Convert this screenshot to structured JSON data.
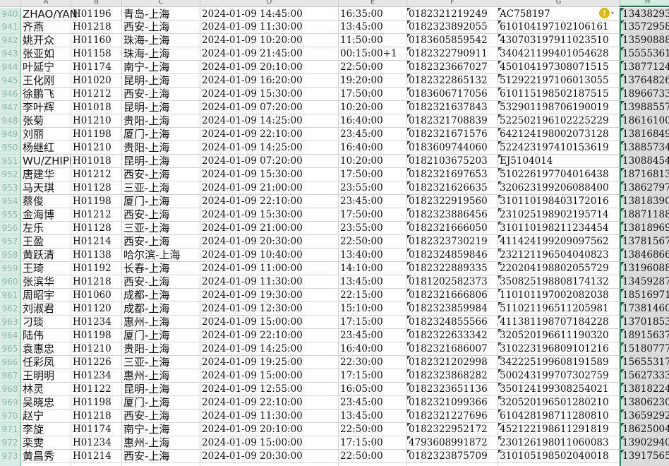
{
  "columns": [
    "A",
    "B",
    "C",
    "D",
    "E",
    "F",
    "G",
    "H"
  ],
  "selected_column": "H",
  "rows": [
    {
      "n": "940",
      "a": "ZHAO/YAN",
      "b": "H01196",
      "c": "青岛-上海",
      "d": "2024-01-09 14:45:00",
      "e": "16:35:00",
      "f": "0182321219249",
      "g": "AC758197",
      "h": "13438293"
    },
    {
      "n": "941",
      "a": "齐燕",
      "b": "H01218",
      "c": "西安-上海",
      "d": "2024-01-09 11:30:00",
      "e": "13:45:00",
      "f": "0182323892055",
      "g": "610104197102106161",
      "h": "13572958"
    },
    {
      "n": "942",
      "a": "姚开众",
      "b": "H01160",
      "c": "珠海-上海",
      "d": "2024-01-09 10:20:00",
      "e": "11:50:00",
      "f": "0183605859542",
      "g": "430703197911023510",
      "h": "13590888"
    },
    {
      "n": "943",
      "a": "张亚如",
      "b": "H01158",
      "c": "珠海-上海",
      "d": "2024-01-09 21:45:00",
      "e": "00:15:00+1",
      "f": "0182322790911",
      "g": "340421199401054628",
      "h": "15555361"
    },
    {
      "n": "944",
      "a": "叶延宁",
      "b": "H01174",
      "c": "南宁-上海",
      "d": "2024-01-09 20:10:00",
      "e": "22:50:00",
      "f": "0182323667027",
      "g": "450104197308071515",
      "h": "13877124"
    },
    {
      "n": "945",
      "a": "王化刚",
      "b": "H01020",
      "c": "昆明-上海",
      "d": "2024-01-09 16:20:00",
      "e": "19:20:00",
      "f": "0182322865132",
      "g": "512922197106013055",
      "h": "13764826"
    },
    {
      "n": "946",
      "a": "徐鹏飞",
      "b": "H01212",
      "c": "西安-上海",
      "d": "2024-01-09 15:30:00",
      "e": "17:50:00",
      "f": "0183606717056",
      "g": "610115198502187515",
      "h": "18966733"
    },
    {
      "n": "947",
      "a": "李叶辉",
      "b": "H01018",
      "c": "昆明-上海",
      "d": "2024-01-09 07:20:00",
      "e": "10:20:00",
      "f": "0182321637843",
      "g": "532901198706190019",
      "h": "13988557"
    },
    {
      "n": "948",
      "a": "张菊",
      "b": "H01210",
      "c": "贵阳-上海",
      "d": "2024-01-09 14:25:00",
      "e": "16:40:00",
      "f": "0182321708839",
      "g": "522502196102225229",
      "h": "18616100"
    },
    {
      "n": "949",
      "a": "刘丽",
      "b": "H01198",
      "c": "厦门-上海",
      "d": "2024-01-09 22:10:00",
      "e": "23:45:00",
      "f": "0182321671576",
      "g": "642124198002073128",
      "h": "13816849"
    },
    {
      "n": "950",
      "a": "杨继红",
      "b": "H01210",
      "c": "贵阳-上海",
      "d": "2024-01-09 14:25:00",
      "e": "16:40:00",
      "f": "0183609744060",
      "g": "522423197410153619",
      "h": "13885734"
    },
    {
      "n": "951",
      "a": "WU/ZHIPEN",
      "b": "H01018",
      "c": "昆明-上海",
      "d": "2024-01-09 07:20:00",
      "e": "10:20:00",
      "f": "0182103675203",
      "g": "EJ5104014",
      "h": "13088454"
    },
    {
      "n": "952",
      "a": "唐建华",
      "b": "H01212",
      "c": "西安-上海",
      "d": "2024-01-09 15:30:00",
      "e": "17:50:00",
      "f": "0182321697653",
      "g": "510226197704016438",
      "h": "18716813"
    },
    {
      "n": "953",
      "a": "马天琪",
      "b": "H01128",
      "c": "三亚-上海",
      "d": "2024-01-09 21:00:00",
      "e": "23:55:00",
      "f": "0182321626635",
      "g": "320623199206088400",
      "h": "13862797"
    },
    {
      "n": "954",
      "a": "蔡俊",
      "b": "H01198",
      "c": "厦门-上海",
      "d": "2024-01-09 22:10:00",
      "e": "23:45:00",
      "f": "0182322919560",
      "g": "310110198403172016",
      "h": "13818390"
    },
    {
      "n": "955",
      "a": "金海博",
      "b": "H01212",
      "c": "西安-上海",
      "d": "2024-01-09 15:30:00",
      "e": "17:50:00",
      "f": "0182323886456",
      "g": "231025198902195714",
      "h": "18871188"
    },
    {
      "n": "956",
      "a": "左乐",
      "b": "H01128",
      "c": "三亚-上海",
      "d": "2024-01-09 21:00:00",
      "e": "23:55:00",
      "f": "0182321666050",
      "g": "310110198211234454",
      "h": "13818969"
    },
    {
      "n": "957",
      "a": "王盈",
      "b": "H01214",
      "c": "西安-上海",
      "d": "2024-01-09 20:30:00",
      "e": "22:50:00",
      "f": "0182323730219",
      "g": "411424199209097562",
      "h": "13781567"
    },
    {
      "n": "958",
      "a": "黄跃清",
      "b": "H01138",
      "c": "哈尔滨-上海",
      "d": "2024-01-09 10:40:00",
      "e": "13:40:00",
      "f": "0182324859846",
      "g": "232121196504040823",
      "h": "13846866"
    },
    {
      "n": "959",
      "a": "王琦",
      "b": "H01192",
      "c": "长春-上海",
      "d": "2024-01-09 11:00:00",
      "e": "14:10:00",
      "f": "0182322889335",
      "g": "220204198802055729",
      "h": "13196088"
    },
    {
      "n": "960",
      "a": "张滨华",
      "b": "H01218",
      "c": "西安-上海",
      "d": "2024-01-09 11:30:00",
      "e": "13:45:00",
      "f": "0181202582373",
      "g": "350825198808174132",
      "h": "13459287"
    },
    {
      "n": "961",
      "a": "周昭宇",
      "b": "H01060",
      "c": "成都-上海",
      "d": "2024-01-09 19:30:00",
      "e": "22:15:00",
      "f": "0182321666806",
      "g": "110101197002082038",
      "h": "18516971"
    },
    {
      "n": "962",
      "a": "刘淑君",
      "b": "H01120",
      "c": "成都-上海",
      "d": "2024-01-09 12:30:00",
      "e": "15:10:00",
      "f": "0182323859984",
      "g": "511021196511205981",
      "h": "17381460"
    },
    {
      "n": "963",
      "a": "刁琰",
      "b": "H01234",
      "c": "惠州-上海",
      "d": "2024-01-09 15:00:00",
      "e": "17:15:00",
      "f": "0182324855566",
      "g": "411381198707184228",
      "h": "13701853"
    },
    {
      "n": "964",
      "a": "陆伟",
      "b": "H01198",
      "c": "厦门-上海",
      "d": "2024-01-09 22:10:00",
      "e": "23:45:00",
      "f": "0182322633342",
      "g": "320520196611190320",
      "h": "18915637"
    },
    {
      "n": "965",
      "a": "袁惠忠",
      "b": "H01210",
      "c": "贵阳-上海",
      "d": "2024-01-09 14:25:00",
      "e": "16:40:00",
      "f": "0182321686007",
      "g": "310223196809101216",
      "h": "15180777"
    },
    {
      "n": "966",
      "a": "任彩凤",
      "b": "H01226",
      "c": "三亚-上海",
      "d": "2024-01-09 19:25:00",
      "e": "22:30:00",
      "f": "0182321202998",
      "g": "342225199608191589",
      "h": "15655317"
    },
    {
      "n": "967",
      "a": "王明明",
      "b": "H01234",
      "c": "惠州-上海",
      "d": "2024-01-09 15:00:00",
      "e": "17:15:00",
      "f": "0182323868282",
      "g": "500243199707302759",
      "h": "15627333"
    },
    {
      "n": "968",
      "a": "林灵",
      "b": "H01122",
      "c": "昆明-上海",
      "d": "2024-01-09 12:55:00",
      "e": "16:05:00",
      "f": "0182323651136",
      "g": "350124199308254021",
      "h": "13818224"
    },
    {
      "n": "969",
      "a": "吴晓忠",
      "b": "H01198",
      "c": "厦门-上海",
      "d": "2024-01-09 22:10:00",
      "e": "23:45:00",
      "f": "0182321099366",
      "g": "320520196501280210",
      "h": "13806230"
    },
    {
      "n": "970",
      "a": "赵宁",
      "b": "H01218",
      "c": "西安-上海",
      "d": "2024-01-09 11:30:00",
      "e": "13:45:00",
      "f": "0182321227696",
      "g": "610428198711280810",
      "h": "13659292"
    },
    {
      "n": "971",
      "a": "李旋",
      "b": "H01174",
      "c": "南宁-上海",
      "d": "2024-01-09 20:10:00",
      "e": "22:50:00",
      "f": "0182322952172",
      "g": "452122198611291819",
      "h": "18625004"
    },
    {
      "n": "972",
      "a": "栾雯",
      "b": "H01234",
      "c": "惠州-上海",
      "d": "2024-01-09 15:00:00",
      "e": "17:15:00",
      "f": "4793608991872",
      "g": "230126198011060083",
      "h": "13902940"
    },
    {
      "n": "973",
      "a": "黄昌秀",
      "b": "H01214",
      "c": "西安-上海",
      "d": "2024-01-09 20:30:00",
      "e": "22:50:00",
      "f": "0182323875709",
      "g": "310105198502040018",
      "h": "13917565"
    }
  ],
  "warning_icon": "exclamation-circle-icon"
}
